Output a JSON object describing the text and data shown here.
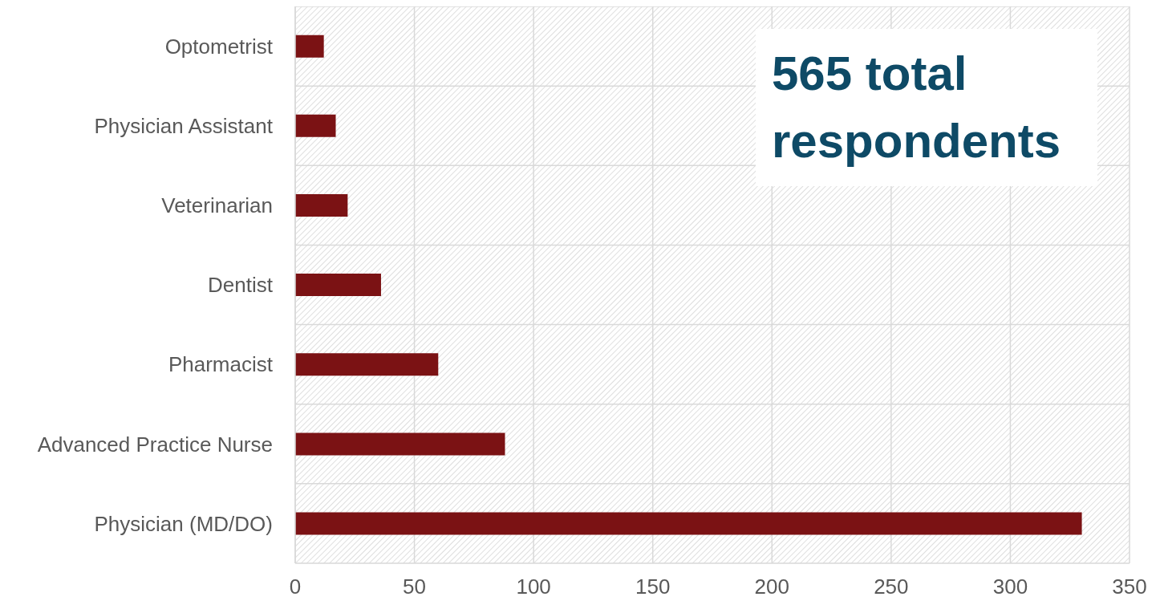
{
  "chart_data": {
    "type": "bar",
    "orientation": "horizontal",
    "categories": [
      "Optometrist",
      "Physician Assistant",
      "Veterinarian",
      "Dentist",
      "Pharmacist",
      "Advanced Practice Nurse",
      "Physician (MD/DO)"
    ],
    "values": [
      12,
      17,
      22,
      36,
      60,
      88,
      330
    ],
    "color": "#7b1214",
    "xlim": [
      0,
      350
    ],
    "xticks": [
      0,
      50,
      100,
      150,
      200,
      250,
      300,
      350
    ],
    "grid": true,
    "annotations": [
      "565 total respondents"
    ]
  }
}
